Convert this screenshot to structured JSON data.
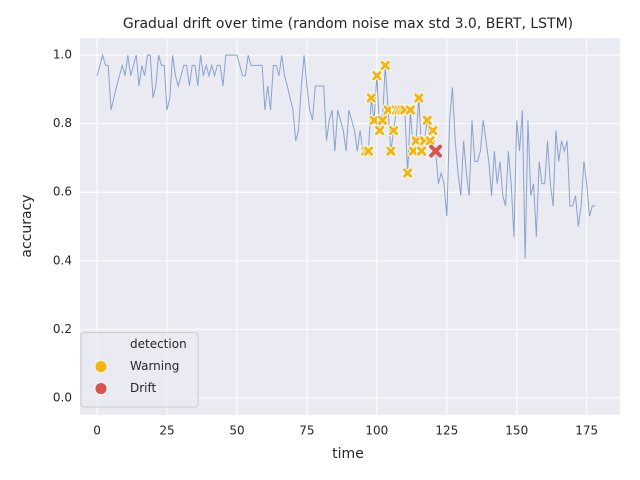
{
  "chart_data": {
    "type": "line",
    "title": "Gradual drift over time (random noise max std 3.0, BERT, LSTM)",
    "xlabel": "time",
    "ylabel": "accuracy",
    "x": [
      0,
      1,
      2,
      3,
      4,
      5,
      6,
      7,
      8,
      9,
      10,
      11,
      12,
      13,
      14,
      15,
      16,
      17,
      18,
      19,
      20,
      21,
      22,
      23,
      24,
      25,
      26,
      27,
      28,
      29,
      30,
      31,
      32,
      33,
      34,
      35,
      36,
      37,
      38,
      39,
      40,
      41,
      42,
      43,
      44,
      45,
      46,
      47,
      48,
      49,
      50,
      51,
      52,
      53,
      54,
      55,
      56,
      57,
      58,
      59,
      60,
      61,
      62,
      63,
      64,
      65,
      66,
      67,
      68,
      69,
      70,
      71,
      72,
      73,
      74,
      75,
      76,
      77,
      78,
      79,
      80,
      81,
      82,
      83,
      84,
      85,
      86,
      87,
      88,
      89,
      90,
      91,
      92,
      93,
      94,
      95,
      96,
      97,
      98,
      99,
      100,
      101,
      102,
      103,
      104,
      105,
      106,
      107,
      108,
      109,
      110,
      111,
      112,
      113,
      114,
      115,
      116,
      117,
      118,
      119,
      120,
      121,
      122,
      123,
      124,
      125,
      126,
      127,
      128,
      129,
      130,
      131,
      132,
      133,
      134,
      135,
      136,
      137,
      138,
      139,
      140,
      141,
      142,
      143,
      144,
      145,
      146,
      147,
      148,
      149,
      150,
      151,
      152,
      153,
      154,
      155,
      156,
      157,
      158,
      159,
      160,
      161,
      162,
      163,
      164,
      165,
      166,
      167,
      168,
      169,
      170,
      171,
      172,
      173,
      174,
      175,
      176,
      177,
      178
    ],
    "values": [
      0.94,
      0.97,
      1.0,
      0.97,
      0.97,
      0.84,
      0.875,
      0.91,
      0.94,
      0.97,
      0.94,
      1.0,
      0.94,
      0.97,
      1.0,
      0.91,
      0.97,
      0.94,
      1.0,
      1.0,
      0.875,
      0.91,
      1.0,
      0.97,
      0.97,
      0.84,
      0.875,
      1.0,
      0.94,
      0.91,
      0.94,
      0.97,
      0.97,
      0.91,
      0.97,
      0.97,
      0.91,
      1.0,
      0.94,
      0.97,
      0.94,
      0.97,
      0.94,
      0.97,
      0.97,
      0.91,
      1.0,
      1.0,
      1.0,
      1.0,
      1.0,
      0.97,
      0.94,
      0.94,
      1.0,
      0.97,
      0.97,
      0.97,
      0.97,
      0.97,
      0.84,
      0.91,
      0.84,
      0.97,
      0.97,
      0.94,
      1.0,
      0.94,
      0.91,
      0.875,
      0.84,
      0.75,
      0.78,
      0.91,
      1.0,
      0.91,
      0.84,
      0.81,
      0.91,
      0.91,
      0.91,
      0.91,
      0.75,
      0.81,
      0.84,
      0.72,
      0.84,
      0.81,
      0.78,
      0.72,
      0.84,
      0.81,
      0.78,
      0.72,
      0.78,
      0.72,
      0.72,
      0.72,
      0.875,
      0.81,
      0.94,
      0.78,
      0.81,
      0.97,
      0.84,
      0.72,
      0.78,
      0.84,
      0.84,
      0.84,
      0.84,
      0.656,
      0.84,
      0.72,
      0.75,
      0.875,
      0.72,
      0.75,
      0.81,
      0.75,
      0.78,
      0.72,
      0.625,
      0.656,
      0.625,
      0.53,
      0.81,
      0.906,
      0.75,
      0.656,
      0.59,
      0.75,
      0.656,
      0.59,
      0.81,
      0.69,
      0.69,
      0.72,
      0.81,
      0.75,
      0.69,
      0.59,
      0.72,
      0.625,
      0.69,
      0.59,
      0.56,
      0.72,
      0.625,
      0.47,
      0.81,
      0.72,
      0.84,
      0.406,
      0.81,
      0.59,
      0.625,
      0.47,
      0.69,
      0.625,
      0.625,
      0.75,
      0.625,
      0.56,
      0.78,
      0.69,
      0.75,
      0.72,
      0.75,
      0.56,
      0.56,
      0.59,
      0.5,
      0.56,
      0.69,
      0.625,
      0.53,
      0.56,
      0.56
    ],
    "color": "#8aa3cc",
    "legend_title": "detection",
    "legend": "lower left",
    "series": [
      {
        "name": "Warning",
        "color": "#f5b30c",
        "x": [
          96,
          97,
          98,
          99,
          100,
          101,
          102,
          103,
          104,
          105,
          106,
          107,
          108,
          109,
          110,
          111,
          112,
          113,
          114,
          115,
          116,
          117,
          118,
          119,
          120
        ],
        "values": [
          0.72,
          0.72,
          0.875,
          0.81,
          0.94,
          0.78,
          0.81,
          0.97,
          0.84,
          0.72,
          0.78,
          0.84,
          0.84,
          0.84,
          0.84,
          0.656,
          0.84,
          0.72,
          0.75,
          0.875,
          0.72,
          0.75,
          0.81,
          0.75,
          0.78
        ]
      },
      {
        "name": "Drift",
        "color": "#d9534f",
        "x": [
          121
        ],
        "values": [
          0.72
        ]
      }
    ],
    "xlim": [
      -6.1,
      186.9
    ],
    "xticks": [
      0,
      25,
      50,
      75,
      100,
      125,
      150,
      175
    ],
    "ylim": [
      -0.05,
      1.05
    ],
    "yticks": [
      {
        "value": 0,
        "label": "0.0"
      },
      0.2,
      0.4,
      0.6,
      0.8,
      {
        "value": 1,
        "label": "1.0"
      }
    ],
    "grid": true
  }
}
